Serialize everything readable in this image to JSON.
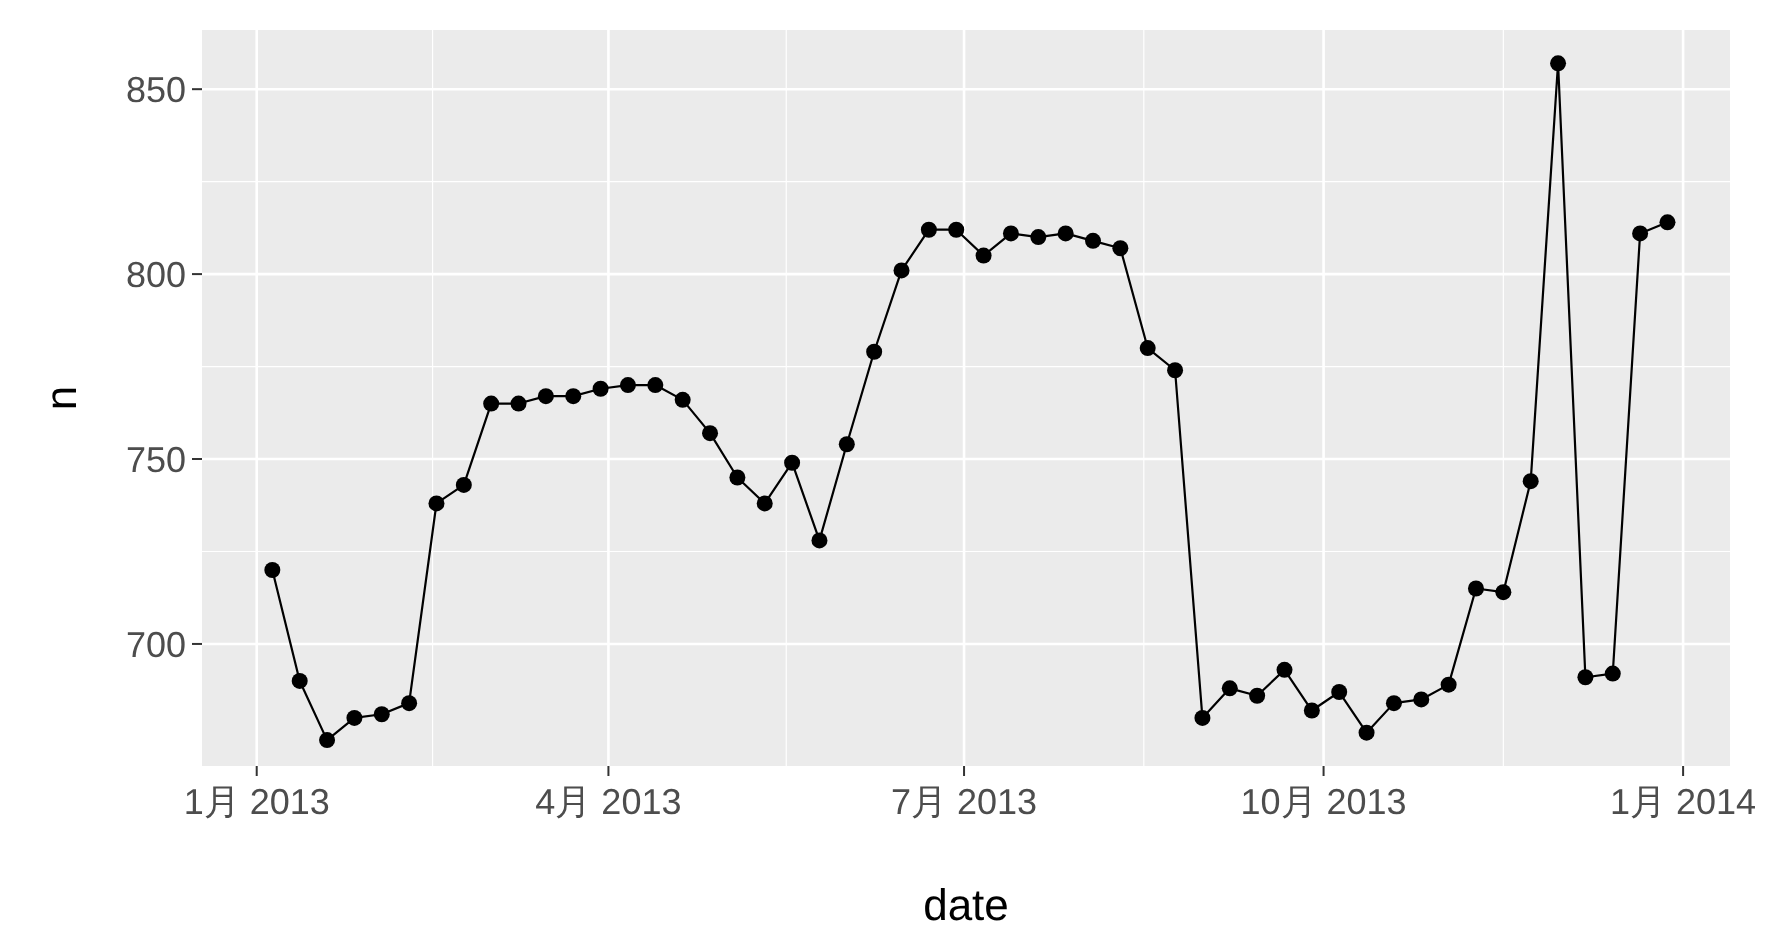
{
  "chart_data": {
    "type": "line",
    "xlabel": "date",
    "ylabel": "n",
    "marker": "circle",
    "grid": true,
    "color": "#000000",
    "x": [
      "2013-01-05",
      "2013-01-12",
      "2013-01-19",
      "2013-01-26",
      "2013-02-02",
      "2013-02-09",
      "2013-02-16",
      "2013-02-23",
      "2013-03-02",
      "2013-03-09",
      "2013-03-16",
      "2013-03-23",
      "2013-03-30",
      "2013-04-06",
      "2013-04-13",
      "2013-04-20",
      "2013-04-27",
      "2013-05-04",
      "2013-05-11",
      "2013-05-18",
      "2013-05-25",
      "2013-06-01",
      "2013-06-08",
      "2013-06-15",
      "2013-06-22",
      "2013-06-29",
      "2013-07-06",
      "2013-07-13",
      "2013-07-20",
      "2013-07-27",
      "2013-08-03",
      "2013-08-10",
      "2013-08-17",
      "2013-08-24",
      "2013-08-31",
      "2013-09-07",
      "2013-09-14",
      "2013-09-21",
      "2013-09-28",
      "2013-10-05",
      "2013-10-12",
      "2013-10-19",
      "2013-10-26",
      "2013-11-02",
      "2013-11-09",
      "2013-11-16",
      "2013-11-23",
      "2013-11-30",
      "2013-12-07",
      "2013-12-14",
      "2013-12-21",
      "2013-12-28"
    ],
    "values": [
      720,
      690,
      674,
      680,
      681,
      684,
      738,
      743,
      765,
      765,
      767,
      767,
      769,
      770,
      770,
      766,
      757,
      745,
      738,
      749,
      728,
      754,
      779,
      801,
      812,
      812,
      805,
      811,
      810,
      811,
      809,
      807,
      780,
      774,
      680,
      688,
      686,
      693,
      682,
      687,
      676,
      684,
      685,
      689,
      715,
      714,
      744,
      857,
      691,
      692,
      811,
      814
    ],
    "xlim": [
      "2012-12-18",
      "2014-01-13"
    ],
    "xticks": [
      {
        "value": "2013-01-01",
        "label": "1月 2013"
      },
      {
        "value": "2013-04-01",
        "label": "4月 2013"
      },
      {
        "value": "2013-07-01",
        "label": "7月 2013"
      },
      {
        "value": "2013-10-01",
        "label": "10月 2013"
      },
      {
        "value": "2014-01-01",
        "label": "1月 2014"
      }
    ],
    "ylim": [
      667,
      866
    ],
    "yticks": [
      700,
      750,
      800,
      850
    ]
  }
}
